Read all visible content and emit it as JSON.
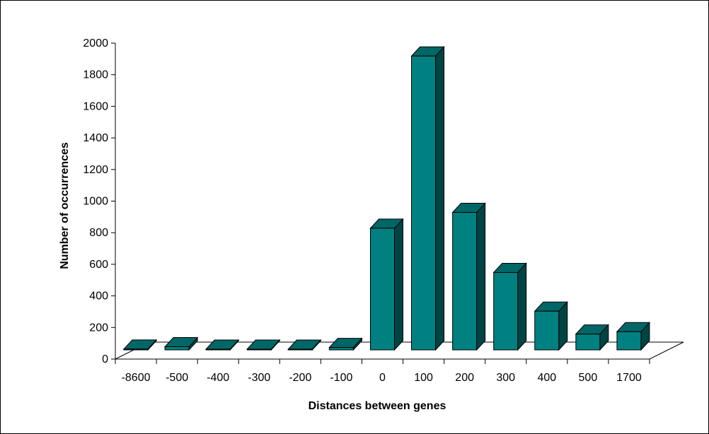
{
  "chart_data": {
    "type": "bar",
    "title": "",
    "xlabel": "Distances between genes",
    "ylabel": "Number of occurrences",
    "categories": [
      "-8600",
      "-500",
      "-400",
      "-300",
      "-200",
      "-100",
      "0",
      "100",
      "200",
      "300",
      "400",
      "500",
      "1700"
    ],
    "values": [
      5,
      20,
      2,
      2,
      3,
      15,
      770,
      1860,
      870,
      490,
      245,
      100,
      115
    ],
    "ylim": [
      0,
      2000
    ],
    "yticks": [
      "0",
      "200",
      "400",
      "600",
      "800",
      "1000",
      "1200",
      "1400",
      "1600",
      "1800",
      "2000"
    ],
    "grid": false,
    "legend": "none",
    "style": "3d-column",
    "colors": {
      "front": "#008080",
      "top": "#006666",
      "side": "#004444",
      "floor": "#ffffff",
      "line": "#000000"
    }
  }
}
